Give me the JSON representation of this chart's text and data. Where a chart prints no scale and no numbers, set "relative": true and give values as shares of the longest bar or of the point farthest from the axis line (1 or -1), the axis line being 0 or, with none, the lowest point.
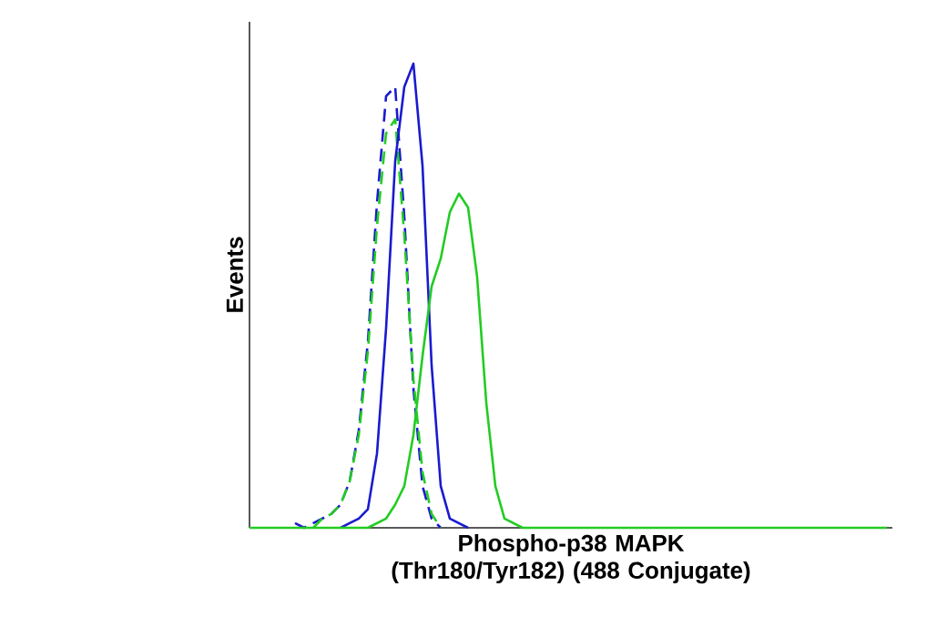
{
  "chart_data": {
    "type": "line",
    "relative": true,
    "xlabel": "Phospho-p38 MAPK (Thr180/Tyr182) (488 Conjugate)",
    "ylabel": "Events",
    "categories": [
      null,
      null,
      null,
      null,
      null,
      null,
      null,
      null,
      null,
      null,
      null,
      null,
      null,
      null,
      null,
      null,
      null,
      null,
      null,
      null,
      null,
      null,
      null,
      null,
      null,
      null,
      null,
      null,
      null,
      null,
      null,
      null,
      null,
      null,
      null,
      null,
      null,
      null,
      null,
      null,
      null,
      null,
      null,
      null,
      null,
      null,
      null,
      null,
      null,
      null,
      null,
      null,
      null,
      null,
      null,
      null,
      null,
      null,
      null,
      null,
      null,
      null,
      null,
      null,
      null,
      null,
      null,
      null,
      null,
      null,
      null
    ],
    "series": [
      {
        "color": "#1a1ad0",
        "line_style": "dashed",
        "values": [
          null,
          null,
          null,
          null,
          null,
          0.01,
          0,
          0.01,
          0.02,
          0.03,
          0.05,
          0.1,
          0.21,
          0.4,
          0.7,
          0.93,
          0.95,
          0.67,
          0.3,
          0.09,
          0.02,
          0,
          null,
          null,
          null,
          null,
          null,
          null,
          null,
          null,
          null,
          null,
          null,
          null,
          null,
          null,
          null,
          null,
          null,
          null,
          null,
          null,
          null,
          null,
          null,
          null,
          null,
          null,
          null,
          null,
          null,
          null,
          null,
          null,
          null,
          null,
          null,
          null,
          null,
          null,
          null,
          null,
          null,
          null,
          null,
          null,
          null,
          null,
          null,
          null,
          null
        ]
      },
      {
        "color": "#22cc22",
        "line_style": "dashed",
        "values": [
          null,
          null,
          null,
          null,
          null,
          null,
          null,
          0,
          0.02,
          0.03,
          0.05,
          0.1,
          0.2,
          0.38,
          0.65,
          0.85,
          0.88,
          0.63,
          0.32,
          0.12,
          0.03,
          0,
          null,
          null,
          null,
          null,
          null,
          null,
          null,
          null,
          null,
          null,
          null,
          null,
          null,
          null,
          null,
          null,
          null,
          null,
          null,
          null,
          null,
          null,
          null,
          null,
          null,
          null,
          null,
          null,
          null,
          null,
          null,
          null,
          null,
          null,
          null,
          null,
          null,
          null,
          null,
          null,
          null,
          null,
          null,
          null,
          null,
          null,
          null,
          null,
          null
        ]
      },
      {
        "color": "#1a1ad0",
        "line_style": "solid",
        "values": [
          null,
          null,
          null,
          null,
          null,
          null,
          null,
          null,
          null,
          null,
          0,
          0.01,
          0.02,
          0.04,
          0.16,
          0.43,
          0.79,
          0.95,
          1.0,
          0.78,
          0.35,
          0.09,
          0.02,
          0.01,
          0,
          null,
          null,
          null,
          null,
          null,
          null,
          null,
          null,
          null,
          null,
          null,
          null,
          null,
          null,
          null,
          null,
          null,
          null,
          null,
          null,
          null,
          null,
          null,
          null,
          null,
          null,
          null,
          null,
          null,
          null,
          null,
          null,
          null,
          null,
          null,
          null,
          null,
          null,
          null,
          null,
          null,
          null,
          null,
          null,
          null,
          null
        ]
      },
      {
        "color": "#22cc22",
        "line_style": "solid",
        "values": [
          0,
          0,
          0,
          0,
          0,
          0,
          0,
          0,
          0,
          0,
          0,
          0,
          0,
          0,
          0.01,
          0.02,
          0.05,
          0.09,
          0.2,
          0.37,
          0.52,
          0.58,
          0.68,
          0.72,
          0.69,
          0.54,
          0.27,
          0.09,
          0.02,
          0.01,
          0,
          0,
          0,
          0,
          0,
          0,
          0,
          0,
          0,
          0,
          0,
          0,
          0,
          0,
          0,
          0,
          0,
          0,
          0,
          0,
          0,
          0,
          0,
          0,
          0,
          0,
          0,
          0,
          0,
          0,
          0,
          0,
          0,
          0,
          0,
          0,
          0,
          0,
          0,
          0,
          0
        ]
      }
    ]
  }
}
